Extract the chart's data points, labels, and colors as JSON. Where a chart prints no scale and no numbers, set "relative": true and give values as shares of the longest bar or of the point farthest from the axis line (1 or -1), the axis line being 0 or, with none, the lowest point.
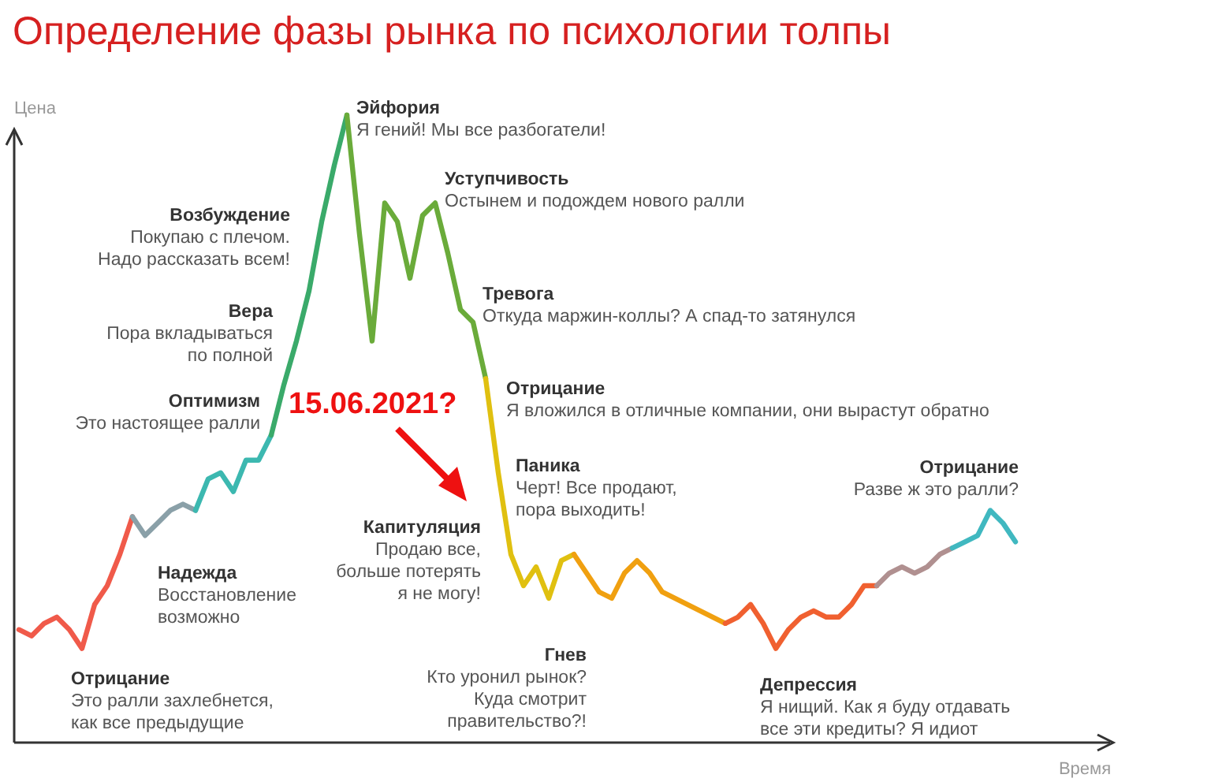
{
  "chart_data": {
    "type": "line",
    "title": "Определение фазы рынка по психологии толпы",
    "xlabel": "Время",
    "ylabel": "Цена",
    "relative": true,
    "categories": [
      null,
      null,
      null,
      null,
      null,
      null,
      null,
      null,
      null,
      null,
      null,
      null,
      null,
      null,
      null,
      null,
      null,
      null,
      null,
      null,
      null,
      null,
      null,
      null,
      null,
      null,
      null,
      null,
      null,
      null,
      null,
      null,
      null,
      null,
      null,
      null,
      null,
      null,
      null,
      null,
      null,
      null,
      null,
      null,
      null,
      null,
      null,
      null,
      null,
      null,
      null,
      null,
      null,
      null,
      null,
      null,
      null,
      null,
      null,
      null,
      null,
      null,
      null,
      null,
      null,
      null,
      null,
      null,
      null,
      null,
      null,
      null,
      null,
      null,
      null,
      null,
      null,
      null,
      null,
      null
    ],
    "series": [
      {
        "color": "#f05a4a",
        "values": [
          0.18,
          0.17,
          0.19,
          0.2,
          0.18,
          0.15,
          0.22,
          0.25,
          0.3,
          0.36,
          null,
          null,
          null,
          null,
          null,
          null,
          null,
          null,
          null,
          null,
          null,
          null,
          null,
          null,
          null,
          null,
          null,
          null,
          null,
          null,
          null,
          null,
          null,
          null,
          null,
          null,
          null,
          null,
          null,
          null,
          null,
          null,
          null,
          null,
          null,
          null,
          null,
          null,
          null,
          null,
          null,
          null,
          null,
          null,
          null,
          null,
          null,
          null,
          null,
          null,
          null,
          null,
          null,
          null,
          null,
          null,
          null,
          null,
          null,
          null,
          null,
          null,
          null,
          null,
          null,
          null,
          null,
          null,
          null,
          null
        ]
      },
      {
        "color": "#8aa0a8",
        "values": [
          null,
          null,
          null,
          null,
          null,
          null,
          null,
          null,
          null,
          0.36,
          0.33,
          0.35,
          0.37,
          0.38,
          0.37,
          null,
          null,
          null,
          null,
          null,
          null,
          null,
          null,
          null,
          null,
          null,
          null,
          null,
          null,
          null,
          null,
          null,
          null,
          null,
          null,
          null,
          null,
          null,
          null,
          null,
          null,
          null,
          null,
          null,
          null,
          null,
          null,
          null,
          null,
          null,
          null,
          null,
          null,
          null,
          null,
          null,
          null,
          null,
          null,
          null,
          null,
          null,
          null,
          null,
          null,
          null,
          null,
          null,
          null,
          null,
          null,
          null,
          null,
          null,
          null,
          null,
          null,
          null,
          null,
          null
        ]
      },
      {
        "color": "#3cb8b0",
        "values": [
          null,
          null,
          null,
          null,
          null,
          null,
          null,
          null,
          null,
          null,
          null,
          null,
          null,
          null,
          0.37,
          0.42,
          0.43,
          0.4,
          0.45,
          0.45,
          0.49,
          null,
          null,
          null,
          null,
          null,
          null,
          null,
          null,
          null,
          null,
          null,
          null,
          null,
          null,
          null,
          null,
          null,
          null,
          null,
          null,
          null,
          null,
          null,
          null,
          null,
          null,
          null,
          null,
          null,
          null,
          null,
          null,
          null,
          null,
          null,
          null,
          null,
          null,
          null,
          null,
          null,
          null,
          null,
          null,
          null,
          null,
          null,
          null,
          null,
          null,
          null,
          null,
          null,
          null,
          null,
          null,
          null,
          null,
          null
        ]
      },
      {
        "color": "#3aaa6a",
        "values": [
          null,
          null,
          null,
          null,
          null,
          null,
          null,
          null,
          null,
          null,
          null,
          null,
          null,
          null,
          null,
          null,
          null,
          null,
          null,
          null,
          0.49,
          0.57,
          0.64,
          0.72,
          0.83,
          0.92,
          1,
          null,
          null,
          null,
          null,
          null,
          null,
          null,
          null,
          null,
          null,
          null,
          null,
          null,
          null,
          null,
          null,
          null,
          null,
          null,
          null,
          null,
          null,
          null,
          null,
          null,
          null,
          null,
          null,
          null,
          null,
          null,
          null,
          null,
          null,
          null,
          null,
          null,
          null,
          null,
          null,
          null,
          null,
          null,
          null,
          null,
          null,
          null,
          null,
          null,
          null,
          null,
          null,
          null
        ]
      },
      {
        "color": "#6aab3a",
        "values": [
          null,
          null,
          null,
          null,
          null,
          null,
          null,
          null,
          null,
          null,
          null,
          null,
          null,
          null,
          null,
          null,
          null,
          null,
          null,
          null,
          null,
          null,
          null,
          null,
          null,
          null,
          1,
          0.81,
          0.64,
          0.86,
          0.83,
          0.74,
          0.84,
          0.86,
          0.78,
          0.69,
          0.67,
          0.58,
          null,
          null,
          null,
          null,
          null,
          null,
          null,
          null,
          null,
          null,
          null,
          null,
          null,
          null,
          null,
          null,
          null,
          null,
          null,
          null,
          null,
          null,
          null,
          null,
          null,
          null,
          null,
          null,
          null,
          null,
          null,
          null,
          null,
          null,
          null,
          null,
          null,
          null,
          null,
          null,
          null,
          null
        ]
      },
      {
        "color": "#e0c010",
        "values": [
          null,
          null,
          null,
          null,
          null,
          null,
          null,
          null,
          null,
          null,
          null,
          null,
          null,
          null,
          null,
          null,
          null,
          null,
          null,
          null,
          null,
          null,
          null,
          null,
          null,
          null,
          null,
          null,
          null,
          null,
          null,
          null,
          null,
          null,
          null,
          null,
          null,
          0.58,
          0.43,
          0.3,
          0.25,
          0.28,
          0.23,
          0.29,
          0.3,
          null,
          null,
          null,
          null,
          null,
          null,
          null,
          null,
          null,
          null,
          null,
          null,
          null,
          null,
          null,
          null,
          null,
          null,
          null,
          null,
          null,
          null,
          null,
          null,
          null,
          null,
          null,
          null,
          null,
          null,
          null,
          null,
          null,
          null,
          null
        ]
      },
      {
        "color": "#f0a010",
        "values": [
          null,
          null,
          null,
          null,
          null,
          null,
          null,
          null,
          null,
          null,
          null,
          null,
          null,
          null,
          null,
          null,
          null,
          null,
          null,
          null,
          null,
          null,
          null,
          null,
          null,
          null,
          null,
          null,
          null,
          null,
          null,
          null,
          null,
          null,
          null,
          null,
          null,
          null,
          null,
          null,
          null,
          null,
          null,
          null,
          0.3,
          0.27,
          0.24,
          0.23,
          0.27,
          0.29,
          0.27,
          0.24,
          0.23,
          0.22,
          0.21,
          0.2,
          0.19,
          null,
          null,
          null,
          null,
          null,
          null,
          null,
          null,
          null,
          null,
          null,
          null,
          null,
          null,
          null,
          null,
          null,
          null,
          null,
          null,
          null,
          null,
          null
        ]
      },
      {
        "color": "#f06030",
        "values": [
          null,
          null,
          null,
          null,
          null,
          null,
          null,
          null,
          null,
          null,
          null,
          null,
          null,
          null,
          null,
          null,
          null,
          null,
          null,
          null,
          null,
          null,
          null,
          null,
          null,
          null,
          null,
          null,
          null,
          null,
          null,
          null,
          null,
          null,
          null,
          null,
          null,
          null,
          null,
          null,
          null,
          null,
          null,
          null,
          null,
          null,
          null,
          null,
          null,
          null,
          null,
          null,
          null,
          null,
          null,
          null,
          0.19,
          0.2,
          0.22,
          0.19,
          0.15,
          0.18,
          0.2,
          0.21,
          0.2,
          0.2,
          0.22,
          0.25,
          0.25,
          null,
          null,
          null,
          null,
          null,
          null,
          null,
          null,
          null,
          null,
          null
        ]
      },
      {
        "color": "#b09090",
        "values": [
          null,
          null,
          null,
          null,
          null,
          null,
          null,
          null,
          null,
          null,
          null,
          null,
          null,
          null,
          null,
          null,
          null,
          null,
          null,
          null,
          null,
          null,
          null,
          null,
          null,
          null,
          null,
          null,
          null,
          null,
          null,
          null,
          null,
          null,
          null,
          null,
          null,
          null,
          null,
          null,
          null,
          null,
          null,
          null,
          null,
          null,
          null,
          null,
          null,
          null,
          null,
          null,
          null,
          null,
          null,
          null,
          null,
          null,
          null,
          null,
          null,
          null,
          null,
          null,
          null,
          null,
          null,
          null,
          0.25,
          0.27,
          0.28,
          0.27,
          0.28,
          0.3,
          0.31,
          null,
          null,
          null,
          null,
          null
        ]
      },
      {
        "color": "#40b8c0",
        "values": [
          null,
          null,
          null,
          null,
          null,
          null,
          null,
          null,
          null,
          null,
          null,
          null,
          null,
          null,
          null,
          null,
          null,
          null,
          null,
          null,
          null,
          null,
          null,
          null,
          null,
          null,
          null,
          null,
          null,
          null,
          null,
          null,
          null,
          null,
          null,
          null,
          null,
          null,
          null,
          null,
          null,
          null,
          null,
          null,
          null,
          null,
          null,
          null,
          null,
          null,
          null,
          null,
          null,
          null,
          null,
          null,
          null,
          null,
          null,
          null,
          null,
          null,
          null,
          null,
          null,
          null,
          null,
          null,
          null,
          null,
          null,
          null,
          null,
          null,
          0.31,
          0.32,
          0.33,
          0.37,
          0.35,
          0.32
        ]
      }
    ],
    "annotations": [
      "Эйфория\nЯ гений! Мы все разбогатели!",
      "Уступчивость\nОстынем и подождем нового ралли",
      "Возбуждение\nПокупаю с плечом.\nНадо рассказать всем!",
      "Вера\nПора вкладываться\nпо полной",
      "Тревога\nОткуда маржин-коллы? А спад-то затянулся",
      "Оптимизм\nЭто настоящее ралли",
      "Отрицание\nЯ вложился в отличные компании, они вырастут обратно",
      "Паника\nЧерт! Все продают,\nпора выходить!",
      "Капитуляция\nПродаю все,\nбольше потерять\nя не могу!",
      "Надежда\nВосстановление\nвозможно",
      "Отрицание\nЭто ралли захлебнется,\nкак все предыдущие",
      "Гнев\nКто уронил рынок?\nКуда смотрит\nправительство?!",
      "Депрессия\nЯ нищий. Как я буду отдавать\nвсе эти кредиты? Я идиот",
      "Отрицание\nРазве ж это ралли?",
      "15.06.2021?"
    ]
  }
}
